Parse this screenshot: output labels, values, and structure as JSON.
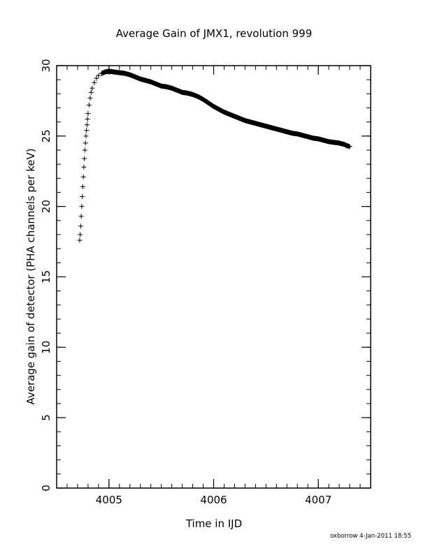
{
  "chart_data": {
    "type": "scatter",
    "title": "Average Gain of JMX1, revolution 999",
    "xlabel": "Time in IJD",
    "ylabel": "Average gain of detector (PHA channels per keV)",
    "xlim": [
      4004.5,
      4007.5
    ],
    "ylim": [
      0,
      30
    ],
    "x_ticks": [
      4005,
      4006,
      4007
    ],
    "y_ticks": [
      0,
      5,
      10,
      15,
      20,
      25,
      30
    ],
    "x_minor_step": 0.1,
    "y_minor_step": 1,
    "grid": false,
    "marker": "plus",
    "series": [
      {
        "points": [
          [
            4004.72,
            17.6
          ],
          [
            4004.725,
            18.0
          ],
          [
            4004.73,
            18.6
          ],
          [
            4004.735,
            19.3
          ],
          [
            4004.74,
            20.0
          ],
          [
            4004.745,
            20.7
          ],
          [
            4004.75,
            21.4
          ],
          [
            4004.755,
            22.1
          ],
          [
            4004.76,
            22.8
          ],
          [
            4004.765,
            23.4
          ],
          [
            4004.77,
            24.0
          ],
          [
            4004.775,
            24.5
          ],
          [
            4004.78,
            25.0
          ],
          [
            4004.785,
            25.4
          ],
          [
            4004.79,
            25.8
          ],
          [
            4004.795,
            26.2
          ],
          [
            4004.8,
            26.6
          ],
          [
            4004.81,
            27.2
          ],
          [
            4004.82,
            27.7
          ],
          [
            4004.83,
            28.1
          ],
          [
            4004.84,
            28.4
          ],
          [
            4004.86,
            28.8
          ],
          [
            4004.88,
            29.1
          ],
          [
            4004.9,
            29.3
          ],
          [
            4004.93,
            29.45
          ],
          [
            4004.96,
            29.55
          ],
          [
            4005.0,
            29.6
          ],
          [
            4005.05,
            29.55
          ],
          [
            4005.1,
            29.5
          ],
          [
            4005.15,
            29.45
          ],
          [
            4005.2,
            29.35
          ],
          [
            4005.25,
            29.2
          ],
          [
            4005.3,
            29.05
          ],
          [
            4005.35,
            28.95
          ],
          [
            4005.4,
            28.85
          ],
          [
            4005.45,
            28.7
          ],
          [
            4005.5,
            28.55
          ],
          [
            4005.55,
            28.5
          ],
          [
            4005.6,
            28.4
          ],
          [
            4005.65,
            28.25
          ],
          [
            4005.7,
            28.1
          ],
          [
            4005.75,
            28.05
          ],
          [
            4005.8,
            27.95
          ],
          [
            4005.85,
            27.8
          ],
          [
            4005.9,
            27.6
          ],
          [
            4005.95,
            27.35
          ],
          [
            4006.0,
            27.1
          ],
          [
            4006.05,
            26.9
          ],
          [
            4006.1,
            26.7
          ],
          [
            4006.15,
            26.55
          ],
          [
            4006.2,
            26.4
          ],
          [
            4006.25,
            26.25
          ],
          [
            4006.3,
            26.1
          ],
          [
            4006.35,
            26.0
          ],
          [
            4006.4,
            25.9
          ],
          [
            4006.45,
            25.8
          ],
          [
            4006.5,
            25.7
          ],
          [
            4006.55,
            25.6
          ],
          [
            4006.6,
            25.5
          ],
          [
            4006.65,
            25.4
          ],
          [
            4006.7,
            25.3
          ],
          [
            4006.75,
            25.2
          ],
          [
            4006.8,
            25.15
          ],
          [
            4006.85,
            25.05
          ],
          [
            4006.9,
            24.95
          ],
          [
            4006.95,
            24.85
          ],
          [
            4007.0,
            24.8
          ],
          [
            4007.05,
            24.7
          ],
          [
            4007.1,
            24.6
          ],
          [
            4007.15,
            24.55
          ],
          [
            4007.2,
            24.5
          ],
          [
            4007.25,
            24.4
          ],
          [
            4007.28,
            24.3
          ],
          [
            4007.3,
            24.25
          ]
        ]
      }
    ]
  },
  "footer": {
    "stamp": "oxborrow  4-Jan-2011 18:55"
  }
}
